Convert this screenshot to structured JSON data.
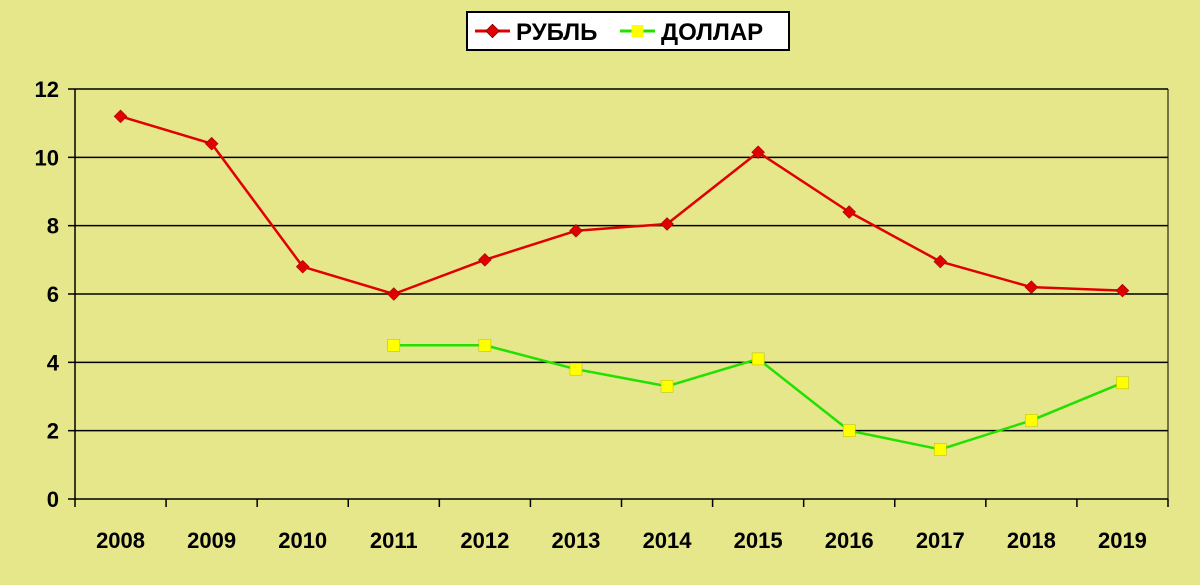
{
  "chart_data": {
    "type": "line",
    "categories": [
      "2008",
      "2009",
      "2010",
      "2011",
      "2012",
      "2013",
      "2014",
      "2015",
      "2016",
      "2017",
      "2018",
      "2019"
    ],
    "series": [
      {
        "name": "РУБЛЬ",
        "color": "#e00000",
        "marker_color": "#e00000",
        "marker": "diamond",
        "values": [
          11.2,
          10.4,
          6.8,
          6.0,
          7.0,
          7.85,
          8.05,
          10.15,
          8.4,
          6.95,
          6.2,
          6.1
        ]
      },
      {
        "name": "ДОЛЛАР",
        "color": "#22e000",
        "marker_color": "#ffff00",
        "marker": "square",
        "values": [
          null,
          null,
          null,
          4.5,
          4.5,
          3.8,
          3.3,
          4.1,
          2.0,
          1.45,
          2.3,
          3.4
        ]
      }
    ],
    "y_ticks": [
      "0",
      "2",
      "4",
      "6",
      "8",
      "10",
      "12"
    ],
    "ylim": [
      0,
      12
    ],
    "grid": true,
    "legend_position": "top-center",
    "background": "#e6e68a"
  }
}
